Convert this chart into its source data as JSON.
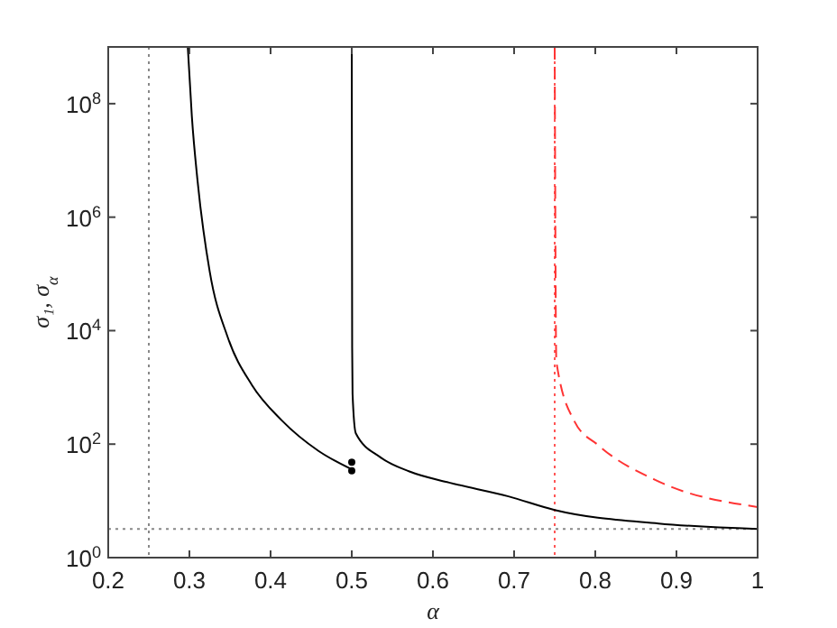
{
  "chart_data": {
    "type": "line",
    "xlabel": "α",
    "ylabel": "σ₁, σ$_{α}$",
    "log": "y",
    "grid": false,
    "xlim": [
      0.2,
      1
    ],
    "xticks": [
      0.2,
      0.3,
      0.4,
      0.5,
      0.6,
      0.7,
      0.8,
      0.9,
      1
    ],
    "ylim": [
      1,
      1000000000
    ],
    "yticks": [
      {
        "value": 1,
        "label": "10$^{0}$"
      },
      {
        "value": 100,
        "label": "10$^{2}$"
      },
      {
        "value": 10000,
        "label": "10$^{4}$"
      },
      {
        "value": 1000000,
        "label": "10$^{6}$"
      },
      {
        "value": 100000000,
        "label": "10$^{8}$"
      }
    ],
    "series": [
      {
        "color": "#000000",
        "line_style": "solid",
        "x": [
          0.298,
          0.303,
          0.31,
          0.325,
          0.347,
          0.377,
          0.414,
          0.459,
          0.5
        ],
        "values": [
          1000000000,
          60000000,
          4400000,
          110000,
          7800,
          1100,
          260,
          76,
          36
        ]
      },
      {
        "color": "#000000",
        "line_style": "solid",
        "x": [
          0.5,
          0.5005,
          0.501,
          0.505,
          0.535,
          0.571,
          0.62,
          0.693,
          0.75,
          0.878,
          1.0
        ],
        "values": [
          1000000000,
          5000,
          760,
          155,
          59,
          33,
          21,
          12,
          6.9,
          4.0,
          3.2
        ]
      },
      {
        "color": "#ff3333",
        "line_style": "dashed",
        "x": [
          0.75,
          0.752,
          0.774,
          0.804,
          0.878,
          1.0
        ],
        "values": [
          1000000000,
          2900,
          257,
          95,
          22,
          7.8
        ]
      },
      {
        "type": "scatter",
        "color": "#000000",
        "marker": "circle",
        "x": [
          0.5,
          0.5
        ],
        "values": [
          48,
          34
        ]
      }
    ],
    "ref_lines": [
      {
        "axis": "x",
        "value": 0.25,
        "color": "#888888",
        "line_style": "dotted"
      },
      {
        "axis": "x",
        "value": 0.75,
        "color": "#ff5555",
        "line_style": "dotted"
      },
      {
        "axis": "y",
        "value": 3.2,
        "color": "#888888",
        "line_style": "dotted"
      }
    ]
  }
}
